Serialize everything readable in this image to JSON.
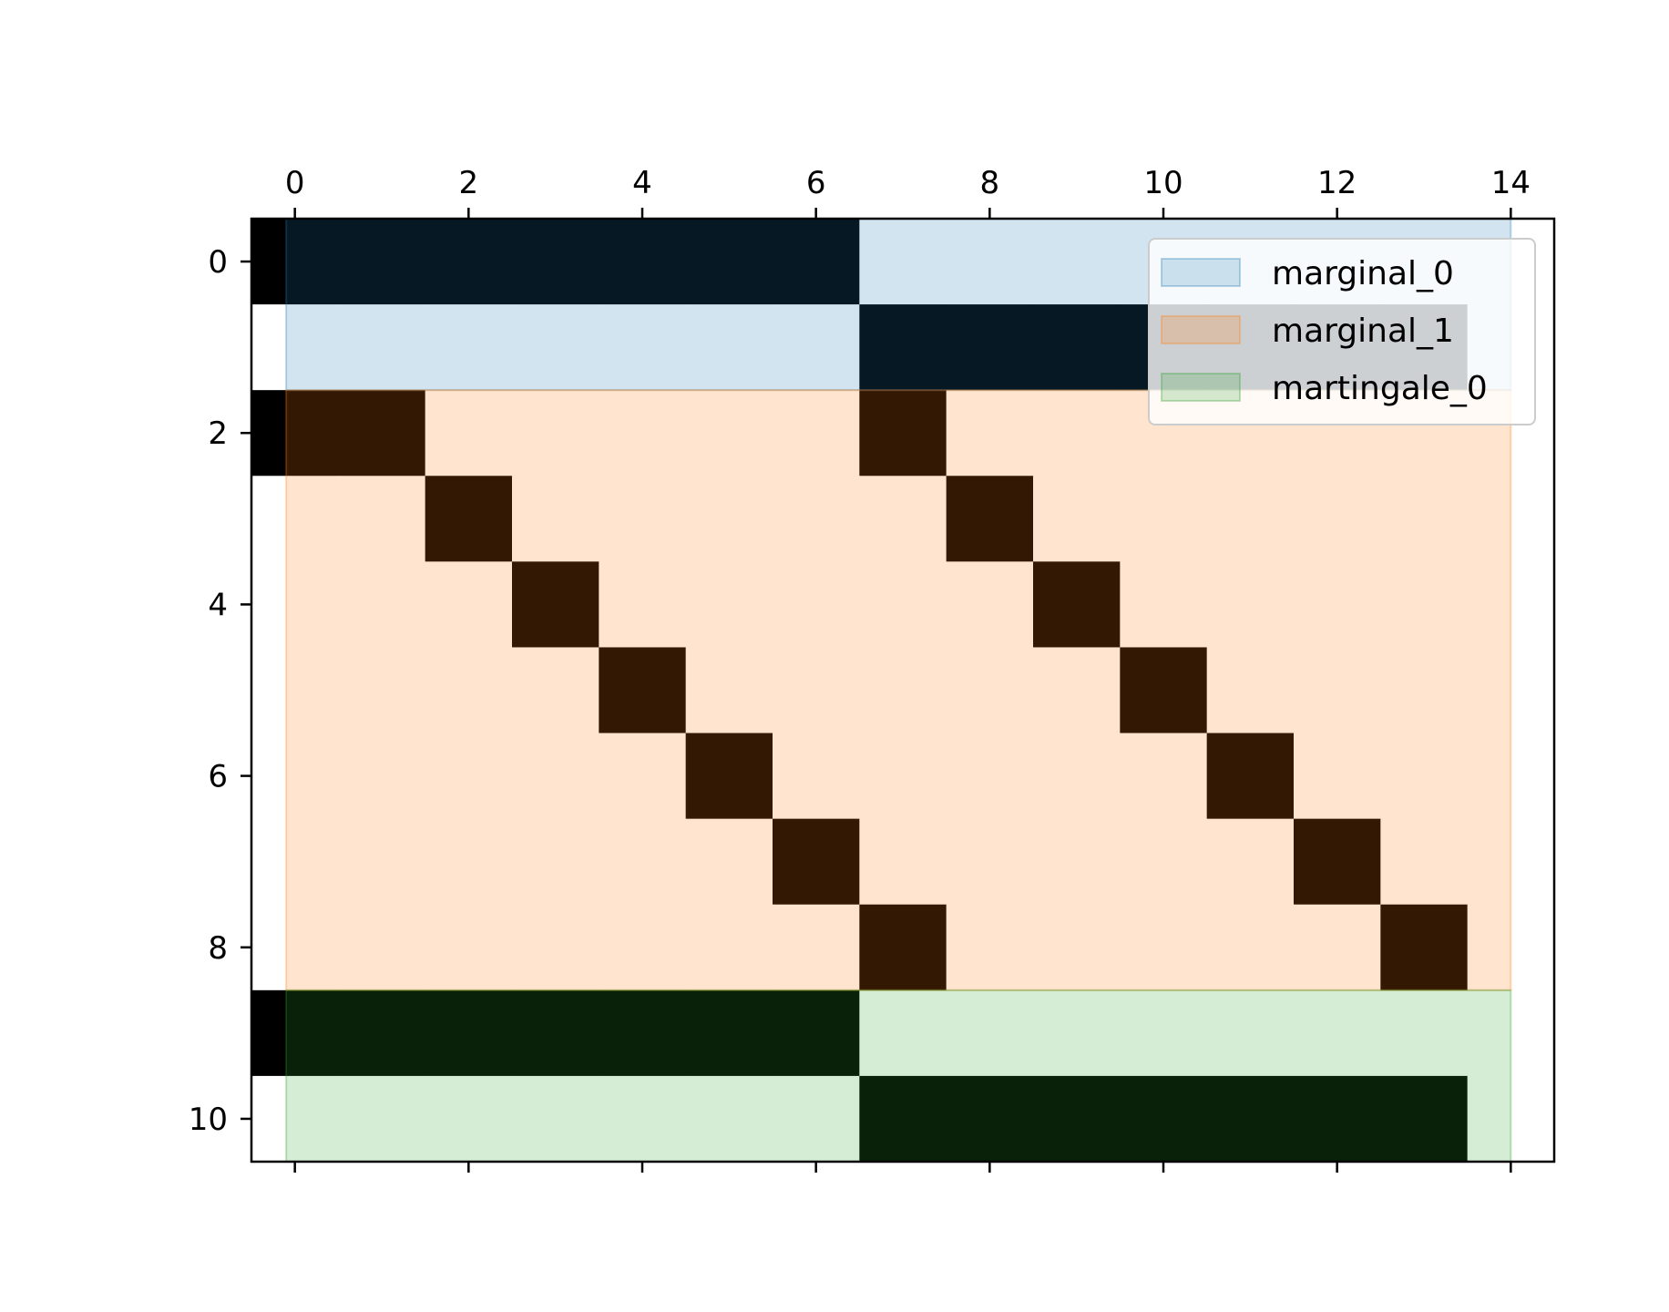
{
  "chart_data": {
    "type": "heatmap",
    "n_rows": 11,
    "n_cols": 15,
    "x_ticks": [
      "0",
      "2",
      "4",
      "6",
      "8",
      "10",
      "12",
      "14"
    ],
    "x_tick_values": [
      0,
      2,
      4,
      6,
      8,
      10,
      12,
      14
    ],
    "y_ticks": [
      "0",
      "2",
      "4",
      "6",
      "8",
      "10"
    ],
    "y_tick_values": [
      0,
      2,
      4,
      6,
      8,
      10
    ],
    "xlim": [
      -0.5,
      14.5
    ],
    "ylim": [
      10.5,
      -0.5
    ],
    "x_axis_position": "top",
    "grid": false,
    "matrix": [
      [
        1,
        1,
        1,
        1,
        1,
        1,
        1,
        0,
        0,
        0,
        0,
        0,
        0,
        0,
        0
      ],
      [
        0,
        0,
        0,
        0,
        0,
        0,
        0,
        1,
        1,
        1,
        1,
        1,
        1,
        1,
        0
      ],
      [
        1,
        1,
        0,
        0,
        0,
        0,
        0,
        1,
        0,
        0,
        0,
        0,
        0,
        0,
        0
      ],
      [
        0,
        0,
        1,
        0,
        0,
        0,
        0,
        0,
        1,
        0,
        0,
        0,
        0,
        0,
        0
      ],
      [
        0,
        0,
        0,
        1,
        0,
        0,
        0,
        0,
        0,
        1,
        0,
        0,
        0,
        0,
        0
      ],
      [
        0,
        0,
        0,
        0,
        1,
        0,
        0,
        0,
        0,
        0,
        1,
        0,
        0,
        0,
        0
      ],
      [
        0,
        0,
        0,
        0,
        0,
        1,
        0,
        0,
        0,
        0,
        0,
        1,
        0,
        0,
        0
      ],
      [
        0,
        0,
        0,
        0,
        0,
        0,
        1,
        0,
        0,
        0,
        0,
        0,
        1,
        0,
        0
      ],
      [
        0,
        0,
        0,
        0,
        0,
        0,
        0,
        1,
        0,
        0,
        0,
        0,
        0,
        1,
        0
      ],
      [
        1,
        1,
        1,
        1,
        1,
        1,
        1,
        0,
        0,
        0,
        0,
        0,
        0,
        0,
        0
      ],
      [
        0,
        0,
        0,
        0,
        0,
        0,
        0,
        1,
        1,
        1,
        1,
        1,
        1,
        1,
        0
      ]
    ],
    "series": [
      {
        "name": "marginal_0",
        "color": "#1f77b4",
        "x_range": [
          -0.1,
          14
        ],
        "y_range": [
          -0.5,
          1.5
        ]
      },
      {
        "name": "marginal_1",
        "color": "#ff7f0e",
        "x_range": [
          -0.1,
          14
        ],
        "y_range": [
          1.5,
          8.5
        ]
      },
      {
        "name": "martingale_0",
        "color": "#2ca02c",
        "x_range": [
          -0.1,
          14
        ],
        "y_range": [
          8.5,
          10.5
        ]
      }
    ],
    "legend_position": "top-right"
  }
}
